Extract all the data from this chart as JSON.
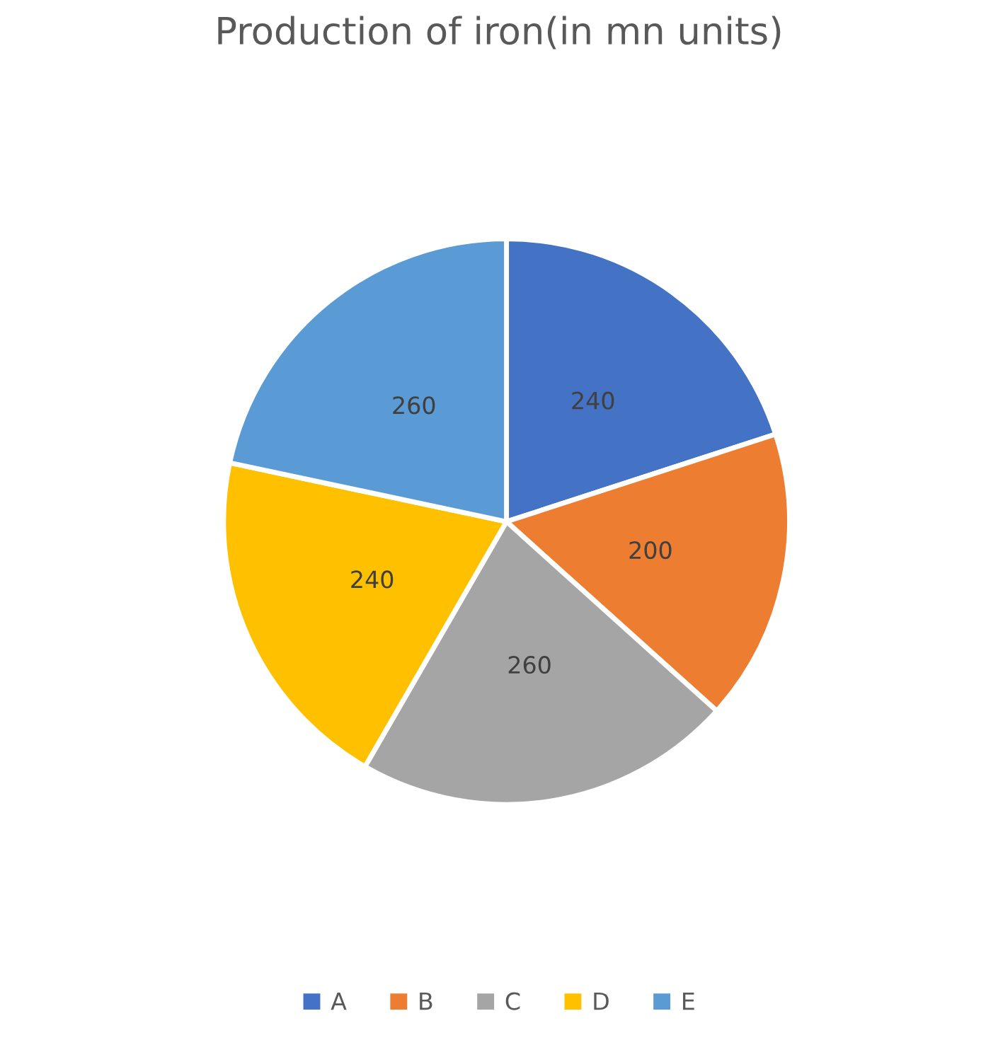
{
  "chart_data": {
    "type": "pie",
    "title": "Production of iron(in mn units)",
    "categories": [
      "A",
      "B",
      "C",
      "D",
      "E"
    ],
    "values": [
      240,
      200,
      260,
      240,
      260
    ],
    "colors": [
      "#4472c4",
      "#ed7d31",
      "#a5a5a5",
      "#ffc000",
      "#5b9bd5"
    ],
    "data_labels": true,
    "legend": "bottom"
  }
}
